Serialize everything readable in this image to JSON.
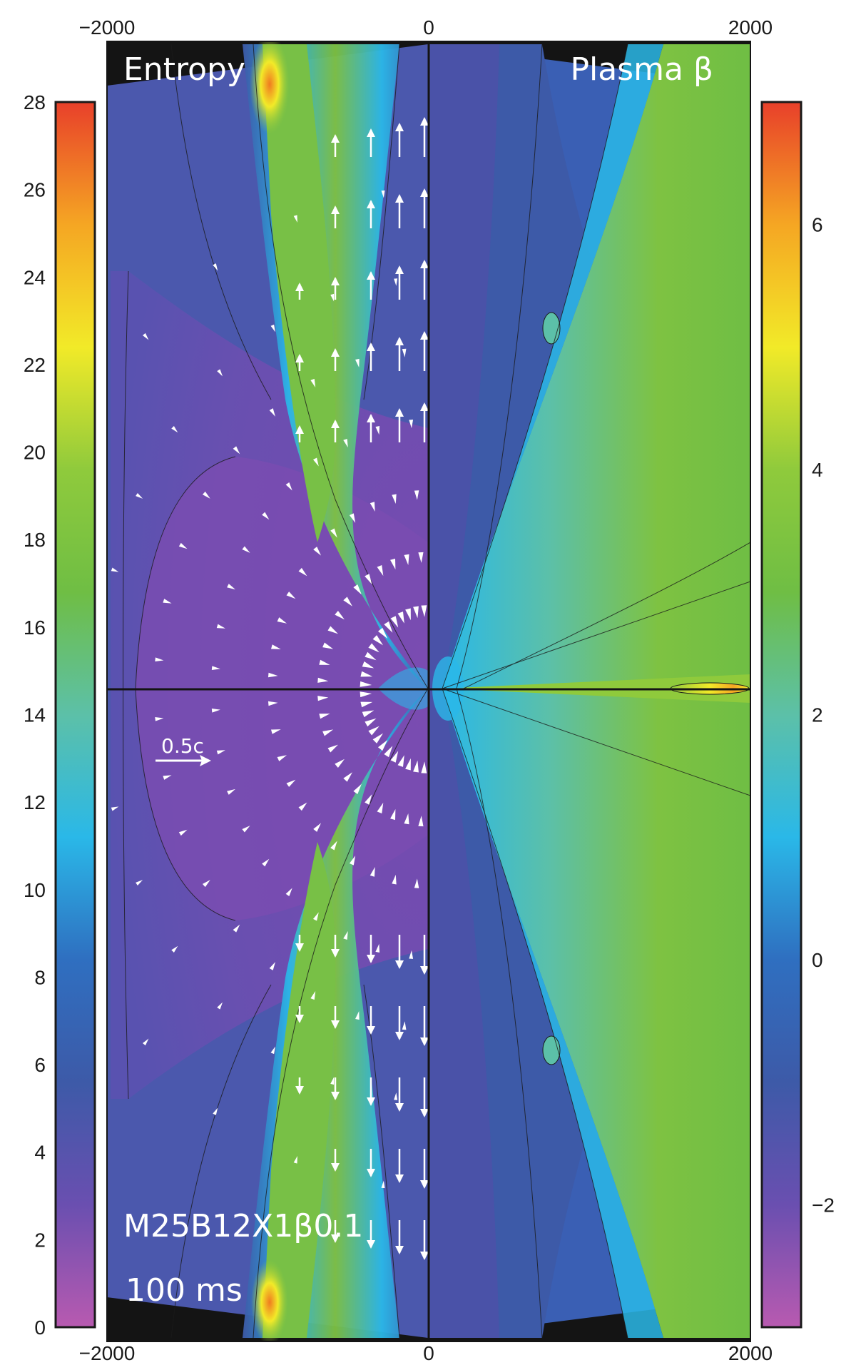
{
  "chart_data": {
    "type": "heatmap",
    "description_panels": [
      "left",
      "right"
    ],
    "panels": [
      {
        "side": "left",
        "quantity": "Entropy",
        "colorbar": {
          "position": "left",
          "range": [
            0,
            28
          ],
          "ticks": [
            "0",
            "2",
            "4",
            "6",
            "8",
            "10",
            "12",
            "14",
            "16",
            "18",
            "20",
            "22",
            "24",
            "26",
            "28"
          ]
        }
      },
      {
        "side": "right",
        "quantity": "Plasma β",
        "colorbar": {
          "position": "right",
          "range": [
            -3,
            7
          ],
          "ticks": [
            "−2",
            "0",
            "2",
            "4",
            "6"
          ]
        }
      }
    ],
    "x_axis": {
      "range": [
        -2000,
        2000
      ],
      "top_ticks": [
        "−2000",
        "0",
        "2000"
      ],
      "bottom_ticks": [
        "−2000",
        "0",
        "2000"
      ]
    },
    "colormap": [
      "#b85ab0",
      "#6a4fb0",
      "#3d5aa8",
      "#2f6fc0",
      "#2ab8e8",
      "#5cc0a8",
      "#6fbe44",
      "#8fca3c",
      "#f2ea28",
      "#f5a623",
      "#e8402a"
    ],
    "annotations": {
      "model": "M25B12X1β0.1",
      "time": "100 ms",
      "velocity_scale": "0.5c"
    }
  },
  "texts": {
    "left_title": "Entropy",
    "right_title": "Plasma β",
    "model": "M25B12X1β0.1",
    "time": "100 ms",
    "scale": "0.5c"
  }
}
